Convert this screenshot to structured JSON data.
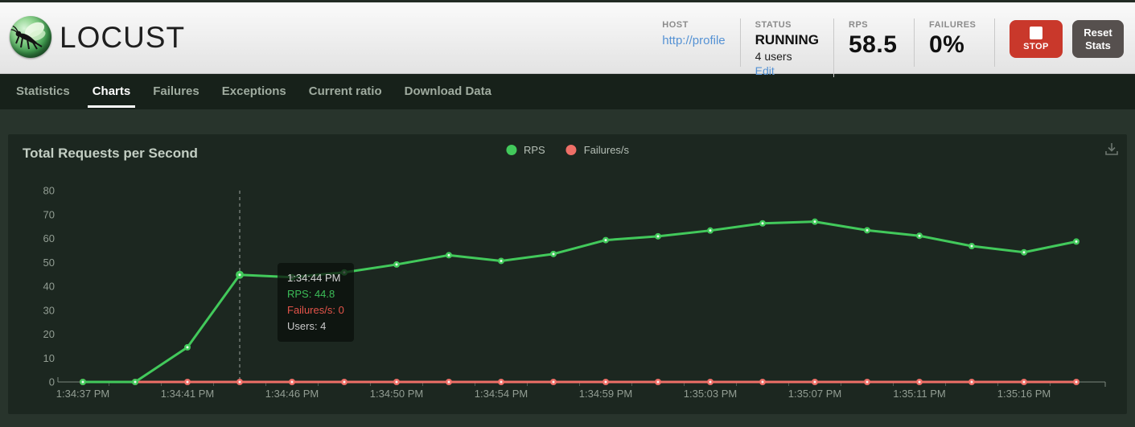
{
  "header": {
    "logo_text": "LOCUST",
    "host": {
      "label": "HOST",
      "value": "http://profile"
    },
    "status": {
      "label": "STATUS",
      "value": "RUNNING",
      "users": "4 users",
      "edit_label": "Edit"
    },
    "rps": {
      "label": "RPS",
      "value": "58.5"
    },
    "failures": {
      "label": "FAILURES",
      "value": "0%"
    },
    "stop_button_label": "STOP",
    "reset_button_label": "Reset Stats"
  },
  "nav": {
    "tabs": [
      {
        "label": "Statistics",
        "active": false
      },
      {
        "label": "Charts",
        "active": true
      },
      {
        "label": "Failures",
        "active": false
      },
      {
        "label": "Exceptions",
        "active": false
      },
      {
        "label": "Current ratio",
        "active": false
      },
      {
        "label": "Download Data",
        "active": false
      }
    ]
  },
  "chart_panel": {
    "title": "Total Requests per Second",
    "legend": [
      {
        "label": "RPS",
        "color": "#42c95b"
      },
      {
        "label": "Failures/s",
        "color": "#ee6f67"
      }
    ],
    "download_icon": "download-chart-icon",
    "tooltip": {
      "time": "1:34:44 PM",
      "rps_line": "RPS: 44.8",
      "failures_line": "Failures/s: 0",
      "users_line": "Users: 4"
    }
  },
  "chart_data": {
    "type": "line",
    "title": "Total Requests per Second",
    "x_tick_labels": [
      "1:34:37 PM",
      "1:34:41 PM",
      "1:34:46 PM",
      "1:34:50 PM",
      "1:34:54 PM",
      "1:34:59 PM",
      "1:35:03 PM",
      "1:35:07 PM",
      "1:35:11 PM",
      "1:35:16 PM"
    ],
    "y_ticks": [
      0,
      10,
      20,
      30,
      40,
      50,
      60,
      70,
      80
    ],
    "ylim": [
      0,
      80
    ],
    "grid": false,
    "legend_position": "top-center",
    "series": [
      {
        "name": "RPS",
        "color": "#42c95b",
        "values": [
          0,
          0,
          14.5,
          44.8,
          43.8,
          45.8,
          49.1,
          53.0,
          50.6,
          53.5,
          59.3,
          60.9,
          63.3,
          66.3,
          67.0,
          63.4,
          61.1,
          56.8,
          54.2,
          58.7
        ]
      },
      {
        "name": "Failures/s",
        "color": "#ee6f67",
        "values": [
          0,
          0,
          0,
          0,
          0,
          0,
          0,
          0,
          0,
          0,
          0,
          0,
          0,
          0,
          0,
          0,
          0,
          0,
          0,
          0
        ]
      }
    ],
    "hover": {
      "index": 3,
      "time": "1:34:44 PM",
      "rps": 44.8,
      "failures": 0,
      "users": 4
    }
  }
}
